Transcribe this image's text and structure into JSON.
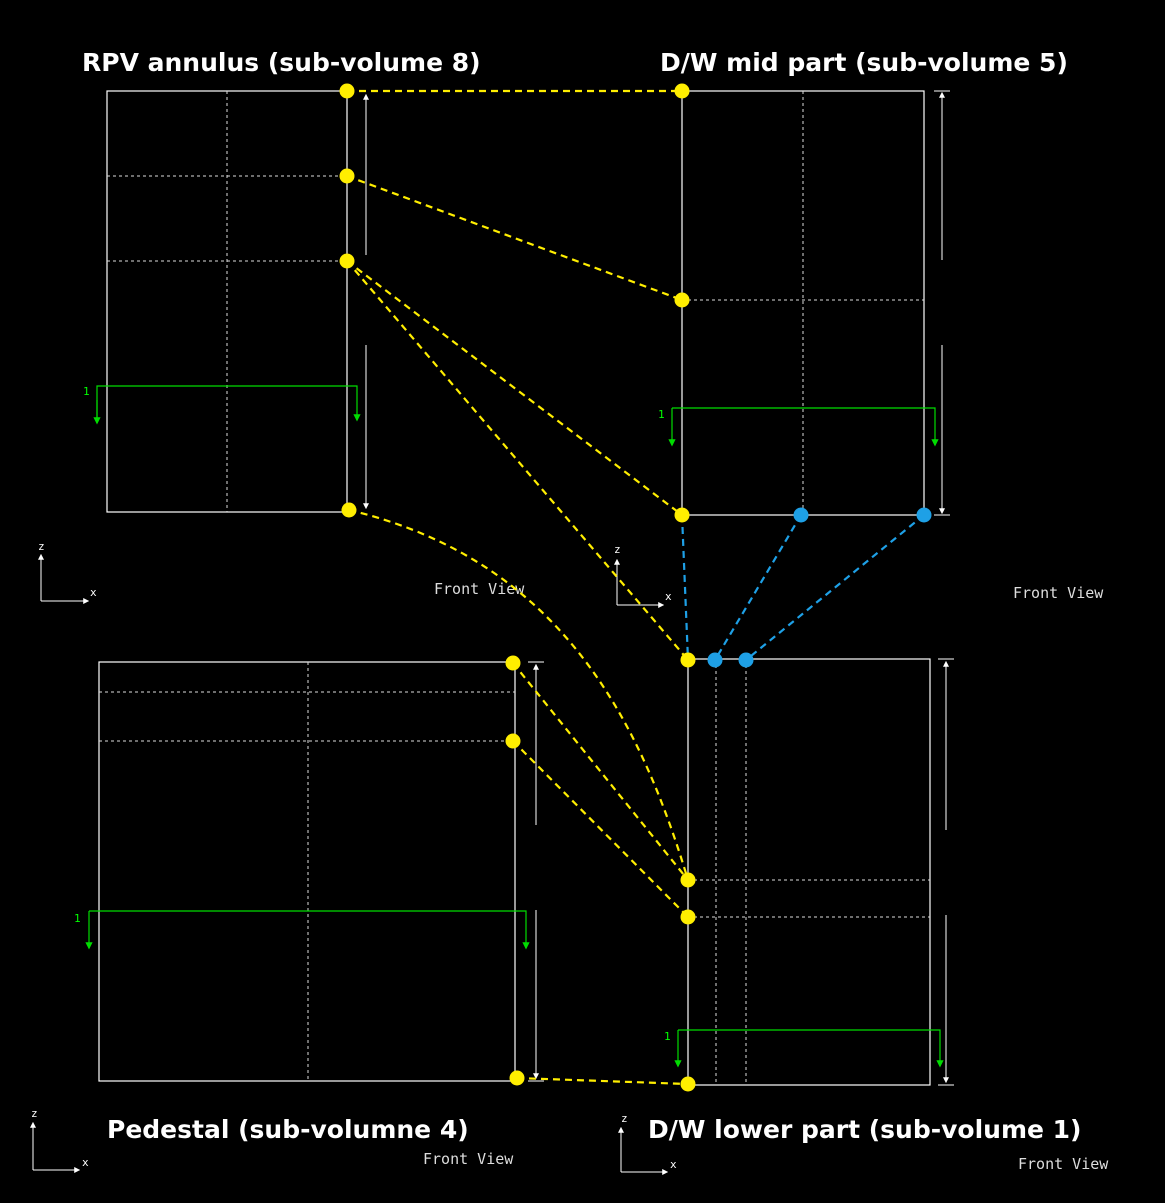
{
  "panels": {
    "rpv_annulus": {
      "title": "RPV annulus (sub-volume 8)",
      "view_label": "Front View"
    },
    "dw_mid": {
      "title": "D/W mid part (sub-volume 5)",
      "view_label": "Front View"
    },
    "pedestal": {
      "title": "Pedestal (sub-volumne 4)",
      "view_label": "Front View"
    },
    "dw_lower": {
      "title": "D/W lower part (sub-volume 1)",
      "view_label": "Front View"
    }
  },
  "axes": {
    "z_label": "z",
    "x_label": "x"
  },
  "flow_marker_label": "1",
  "colors": {
    "background": "#000000",
    "frame": "#ffffff",
    "flow_arrow": "#00dd00",
    "connection_yellow": "#ffee00",
    "connection_blue": "#1ea0e6"
  }
}
